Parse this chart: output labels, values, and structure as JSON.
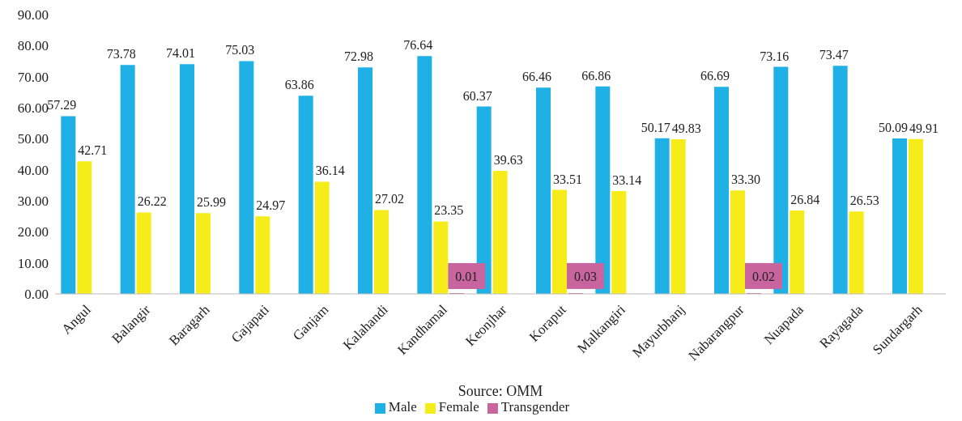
{
  "chart_data": {
    "type": "bar",
    "categories": [
      "Angul",
      "Balangir",
      "Baragarh",
      "Gajapati",
      "Ganjam",
      "Kalahandi",
      "Kandhamal",
      "Keonjhar",
      "Koraput",
      "Malkangiri",
      "Mayurbhanj",
      "Nabarangpur",
      "Nuapada",
      "Rayagada",
      "Sundargarh"
    ],
    "series": [
      {
        "name": "Male",
        "color": "#1fb1e6",
        "values": [
          57.29,
          73.78,
          74.01,
          75.03,
          63.86,
          72.98,
          76.64,
          60.37,
          66.46,
          66.86,
          50.17,
          66.69,
          73.16,
          73.47,
          50.09
        ],
        "value_labels": [
          "57.29",
          "73.78",
          "74.01",
          "75.03",
          "63.86",
          "72.98",
          "76.64",
          "60.37",
          "66.46",
          "66.86",
          "50.17",
          "66.69",
          "73.16",
          "73.47",
          "50.09"
        ]
      },
      {
        "name": "Female",
        "color": "#f5ec1a",
        "values": [
          42.71,
          26.22,
          25.99,
          24.97,
          36.14,
          27.02,
          23.35,
          39.63,
          33.51,
          33.14,
          49.83,
          33.3,
          26.84,
          26.53,
          49.91
        ],
        "value_labels": [
          "42.71",
          "26.22",
          "25.99",
          "24.97",
          "36.14",
          "27.02",
          "23.35",
          "39.63",
          "33.51",
          "33.14",
          "49.83",
          "33.30",
          "26.84",
          "26.53",
          "49.91"
        ]
      },
      {
        "name": "Transgender",
        "color": "#c8649e",
        "values": [
          null,
          null,
          null,
          null,
          null,
          null,
          0.01,
          null,
          0.03,
          null,
          null,
          0.02,
          null,
          null,
          null
        ],
        "value_labels": [
          null,
          null,
          null,
          null,
          null,
          null,
          "0.01",
          null,
          "0.03",
          null,
          null,
          "0.02",
          null,
          null,
          null
        ]
      }
    ],
    "ylim": [
      0,
      90
    ],
    "yticks": [
      {
        "value": 0,
        "label": "0.00"
      },
      {
        "value": 10,
        "label": "10.00"
      },
      {
        "value": 20,
        "label": "20.00"
      },
      {
        "value": 30,
        "label": "30.00"
      },
      {
        "value": 40,
        "label": "40.00"
      },
      {
        "value": 50,
        "label": "50.00"
      },
      {
        "value": 60,
        "label": "60.00"
      },
      {
        "value": 70,
        "label": "70.00"
      },
      {
        "value": 80,
        "label": "80.00"
      },
      {
        "value": 90,
        "label": "90.00"
      }
    ],
    "grid": false,
    "legend": "bottom",
    "annotations": [
      "Source: OMM"
    ]
  }
}
